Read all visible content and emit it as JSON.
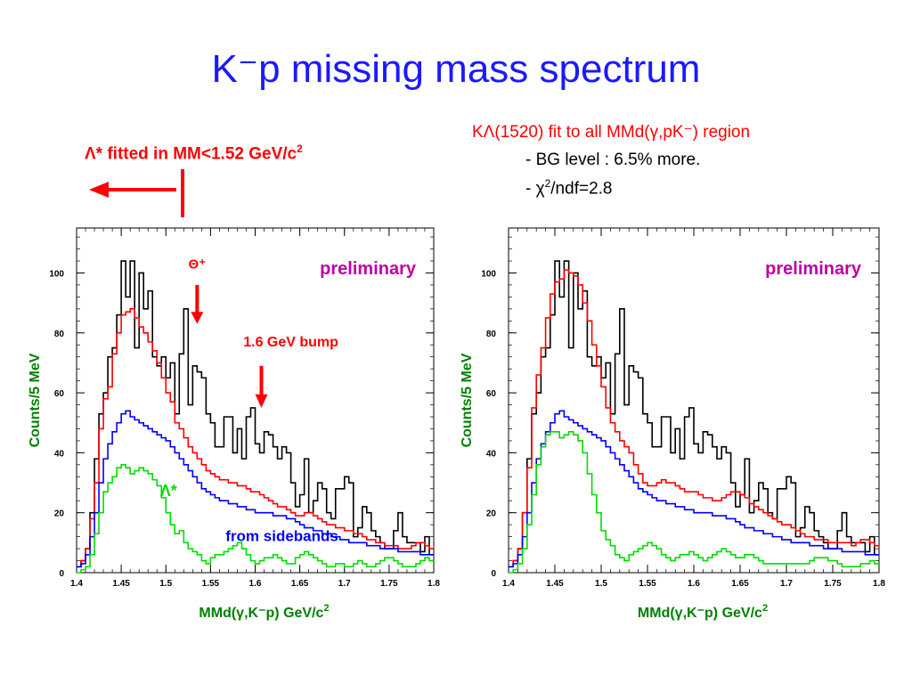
{
  "title": "K⁻p missing mass spectrum",
  "top_left_note": {
    "prefix": "Λ* fitted in MM<1.52 GeV/c",
    "sup": "2"
  },
  "top_right_note": {
    "line1": "KΛ(1520) fit to all MMd(γ,pK⁻) region",
    "line2": "- BG level : 6.5% more.",
    "line3_prefix": "- χ",
    "line3_sup": "2",
    "line3_suffix": "/ndf=2.8"
  },
  "colors": {
    "data": "#000000",
    "fit": "#ff0000",
    "sideband": "#0000ff",
    "lambda_star": "#00dd00",
    "axis_label": "#008000",
    "preliminary": "#c0009f",
    "annotation_red": "#ff0000",
    "annotation_blue": "#0000ff"
  },
  "panels": [
    {
      "preliminary": "preliminary",
      "ylabel": "Counts/5 MeV",
      "xlabel": "MMd(γ,K⁻p) GeV/c",
      "xlabel_sup": "2",
      "annotations": {
        "theta": "Θ⁺",
        "bump": "1.6 GeV bump",
        "lambda_star": "Λ*",
        "sidebands": "from sidebands"
      }
    },
    {
      "preliminary": "preliminary",
      "ylabel": "Counts/5 MeV",
      "xlabel": "MMd(γ,K⁻p) GeV/c",
      "xlabel_sup": "2",
      "annotations": {}
    }
  ],
  "chart_data": [
    {
      "type": "line",
      "step": true,
      "xlim": [
        1.4,
        1.8
      ],
      "ylim": [
        0,
        115
      ],
      "xticks": [
        1.4,
        1.45,
        1.5,
        1.55,
        1.6,
        1.65,
        1.7,
        1.75,
        1.8
      ],
      "yticks": [
        0,
        20,
        40,
        60,
        80,
        100
      ],
      "x": [
        1.4,
        1.405,
        1.41,
        1.415,
        1.42,
        1.425,
        1.43,
        1.435,
        1.44,
        1.445,
        1.45,
        1.455,
        1.46,
        1.465,
        1.47,
        1.475,
        1.48,
        1.485,
        1.49,
        1.495,
        1.5,
        1.505,
        1.51,
        1.515,
        1.52,
        1.525,
        1.53,
        1.535,
        1.54,
        1.545,
        1.55,
        1.555,
        1.56,
        1.565,
        1.57,
        1.575,
        1.58,
        1.585,
        1.59,
        1.595,
        1.6,
        1.605,
        1.61,
        1.615,
        1.62,
        1.625,
        1.63,
        1.635,
        1.64,
        1.645,
        1.65,
        1.655,
        1.66,
        1.665,
        1.67,
        1.675,
        1.68,
        1.685,
        1.69,
        1.695,
        1.7,
        1.705,
        1.71,
        1.715,
        1.72,
        1.725,
        1.73,
        1.735,
        1.74,
        1.745,
        1.75,
        1.755,
        1.76,
        1.765,
        1.77,
        1.775,
        1.78,
        1.785,
        1.79,
        1.795
      ],
      "series": [
        {
          "color_key": "data",
          "values": [
            2,
            4,
            8,
            20,
            38,
            53,
            60,
            72,
            75,
            86,
            104,
            92,
            104,
            75,
            100,
            88,
            94,
            72,
            69,
            72,
            65,
            70,
            53,
            73,
            88,
            56,
            69,
            67,
            65,
            53,
            50,
            42,
            42,
            52,
            52,
            40,
            48,
            38,
            52,
            55,
            43,
            40,
            47,
            46,
            42,
            38,
            42,
            40,
            30,
            22,
            26,
            38,
            20,
            24,
            30,
            28,
            20,
            18,
            28,
            28,
            32,
            30,
            12,
            15,
            22,
            20,
            14,
            12,
            10,
            8,
            8,
            14,
            20,
            12,
            10,
            10,
            10,
            7,
            12,
            6
          ]
        },
        {
          "color_key": "fit",
          "values": [
            2,
            4,
            8,
            18,
            30,
            48,
            58,
            62,
            73,
            80,
            86,
            87,
            88,
            85,
            82,
            80,
            77,
            74,
            70,
            65,
            60,
            57,
            50,
            48,
            45,
            42,
            40,
            38,
            36,
            34,
            33,
            32,
            31,
            31,
            30,
            30,
            29,
            29,
            28,
            27,
            27,
            26,
            25,
            24,
            23,
            22,
            22,
            21,
            20,
            19,
            19,
            20,
            20,
            19,
            18,
            17,
            16,
            16,
            15,
            15,
            14,
            14,
            13,
            13,
            12,
            11,
            11,
            10,
            10,
            9,
            9,
            9,
            8,
            8,
            8,
            9,
            10,
            10,
            9,
            8
          ]
        },
        {
          "color_key": "sideband",
          "values": [
            2,
            3,
            6,
            12,
            20,
            30,
            38,
            43,
            47,
            50,
            53,
            54,
            52,
            51,
            50,
            49,
            48,
            47,
            46,
            45,
            44,
            42,
            40,
            38,
            36,
            34,
            32,
            30,
            28,
            27,
            26,
            25,
            24,
            24,
            23,
            23,
            22,
            22,
            21,
            21,
            20,
            20,
            20,
            20,
            19,
            19,
            19,
            18,
            18,
            17,
            16,
            15,
            15,
            14,
            14,
            13,
            13,
            12,
            12,
            11,
            11,
            10,
            10,
            10,
            10,
            9,
            9,
            9,
            8,
            8,
            8,
            8,
            7,
            7,
            7,
            7,
            7,
            6,
            6,
            6
          ]
        },
        {
          "color_key": "lambda_star",
          "values": [
            0,
            1,
            2,
            6,
            13,
            20,
            27,
            30,
            32,
            35,
            36,
            35,
            33,
            34,
            35,
            34,
            33,
            31,
            29,
            25,
            20,
            16,
            13,
            14,
            10,
            8,
            7,
            6,
            4,
            3,
            5,
            6,
            6,
            7,
            8,
            9,
            10,
            8,
            6,
            4,
            3,
            4,
            5,
            5,
            6,
            5,
            4,
            3,
            3,
            5,
            6,
            7,
            6,
            5,
            4,
            3,
            2,
            2,
            3,
            3,
            2,
            2,
            3,
            4,
            3,
            2,
            2,
            3,
            4,
            5,
            5,
            4,
            3,
            2,
            2,
            2,
            3,
            4,
            5,
            4
          ]
        }
      ]
    },
    {
      "type": "line",
      "step": true,
      "xlim": [
        1.4,
        1.8
      ],
      "ylim": [
        0,
        115
      ],
      "xticks": [
        1.4,
        1.45,
        1.5,
        1.55,
        1.6,
        1.65,
        1.7,
        1.75,
        1.8
      ],
      "yticks": [
        0,
        20,
        40,
        60,
        80,
        100
      ],
      "x": [
        1.4,
        1.405,
        1.41,
        1.415,
        1.42,
        1.425,
        1.43,
        1.435,
        1.44,
        1.445,
        1.45,
        1.455,
        1.46,
        1.465,
        1.47,
        1.475,
        1.48,
        1.485,
        1.49,
        1.495,
        1.5,
        1.505,
        1.51,
        1.515,
        1.52,
        1.525,
        1.53,
        1.535,
        1.54,
        1.545,
        1.55,
        1.555,
        1.56,
        1.565,
        1.57,
        1.575,
        1.58,
        1.585,
        1.59,
        1.595,
        1.6,
        1.605,
        1.61,
        1.615,
        1.62,
        1.625,
        1.63,
        1.635,
        1.64,
        1.645,
        1.65,
        1.655,
        1.66,
        1.665,
        1.67,
        1.675,
        1.68,
        1.685,
        1.69,
        1.695,
        1.7,
        1.705,
        1.71,
        1.715,
        1.72,
        1.725,
        1.73,
        1.735,
        1.74,
        1.745,
        1.75,
        1.755,
        1.76,
        1.765,
        1.77,
        1.775,
        1.78,
        1.785,
        1.79,
        1.795
      ],
      "series": [
        {
          "color_key": "data",
          "values": [
            2,
            4,
            8,
            20,
            38,
            53,
            60,
            72,
            75,
            86,
            104,
            92,
            104,
            75,
            100,
            88,
            94,
            72,
            69,
            72,
            65,
            70,
            53,
            73,
            88,
            56,
            69,
            67,
            65,
            53,
            50,
            42,
            42,
            52,
            52,
            40,
            48,
            38,
            52,
            55,
            43,
            40,
            47,
            46,
            42,
            38,
            42,
            40,
            30,
            22,
            26,
            38,
            20,
            24,
            30,
            28,
            20,
            18,
            28,
            28,
            32,
            30,
            12,
            15,
            22,
            20,
            14,
            12,
            10,
            8,
            8,
            14,
            20,
            12,
            10,
            10,
            10,
            7,
            12,
            6
          ]
        },
        {
          "color_key": "fit",
          "values": [
            2,
            4,
            8,
            20,
            35,
            55,
            66,
            75,
            85,
            93,
            97,
            98,
            101,
            100,
            99,
            96,
            90,
            84,
            76,
            69,
            62,
            55,
            50,
            47,
            44,
            42,
            40,
            36,
            33,
            30,
            29,
            29,
            30,
            31,
            30,
            30,
            29,
            28,
            27,
            27,
            27,
            26,
            25,
            25,
            24,
            24,
            25,
            26,
            27,
            27,
            26,
            25,
            23,
            22,
            21,
            20,
            19,
            18,
            17,
            16,
            16,
            15,
            14,
            13,
            12,
            12,
            11,
            11,
            11,
            10,
            10,
            10,
            10,
            10,
            9,
            10,
            11,
            11,
            10,
            9
          ]
        },
        {
          "color_key": "sideband",
          "values": [
            2,
            3,
            6,
            12,
            20,
            30,
            38,
            43,
            47,
            50,
            53,
            54,
            52,
            51,
            50,
            49,
            48,
            47,
            46,
            45,
            44,
            42,
            40,
            38,
            36,
            34,
            32,
            30,
            28,
            27,
            26,
            25,
            24,
            24,
            23,
            23,
            22,
            22,
            21,
            21,
            20,
            20,
            20,
            20,
            19,
            19,
            19,
            18,
            18,
            17,
            16,
            15,
            15,
            14,
            14,
            13,
            13,
            12,
            12,
            11,
            11,
            10,
            10,
            10,
            10,
            9,
            9,
            9,
            8,
            8,
            8,
            8,
            7,
            7,
            7,
            7,
            7,
            6,
            6,
            6
          ]
        },
        {
          "color_key": "lambda_star",
          "values": [
            0,
            1,
            3,
            8,
            16,
            26,
            36,
            42,
            46,
            47,
            47,
            45,
            46,
            47,
            46,
            44,
            40,
            33,
            26,
            20,
            14,
            11,
            9,
            6,
            5,
            4,
            6,
            7,
            8,
            9,
            10,
            9,
            8,
            6,
            5,
            4,
            5,
            6,
            6,
            7,
            6,
            5,
            4,
            5,
            6,
            7,
            8,
            7,
            6,
            5,
            5,
            6,
            6,
            5,
            4,
            3,
            3,
            3,
            3,
            3,
            3,
            3,
            3,
            3,
            3,
            4,
            5,
            5,
            5,
            4,
            4,
            3,
            2,
            2,
            2,
            2,
            3,
            3,
            4,
            3
          ]
        }
      ]
    }
  ]
}
